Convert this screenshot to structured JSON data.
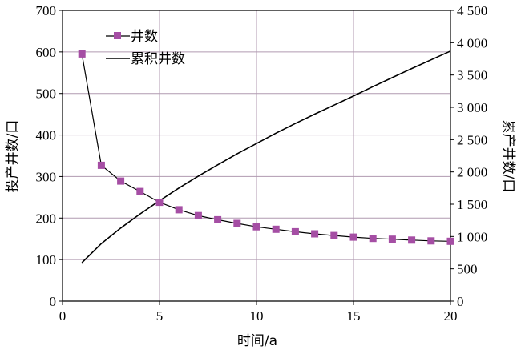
{
  "chart_data": {
    "type": "line",
    "xlabel": "时间/a",
    "ylabel_left": "投产井数/口",
    "ylabel_right": "累产井数/口",
    "xlim": [
      0,
      20
    ],
    "ylim_left": [
      0,
      700
    ],
    "ylim_right": [
      0,
      4500
    ],
    "x_ticks": [
      0,
      5,
      10,
      15,
      20
    ],
    "y_left_ticks": [
      0,
      100,
      200,
      300,
      400,
      500,
      600,
      700
    ],
    "y_right_ticks": [
      0,
      500,
      1000,
      1500,
      2000,
      2500,
      3000,
      3500,
      4000,
      4500
    ],
    "x_tick_labels": [
      "0",
      "5",
      "10",
      "15",
      "20"
    ],
    "y_left_tick_labels": [
      "0",
      "100",
      "200",
      "300",
      "400",
      "500",
      "600",
      "700"
    ],
    "y_right_tick_labels": [
      "0",
      "500",
      "1 000",
      "1 500",
      "2 000",
      "2 500",
      "3 000",
      "3 500",
      "4 000",
      "4 500"
    ],
    "grid": true,
    "legend_position": "top-left",
    "series": [
      {
        "name": "井数",
        "axis": "left",
        "marker": "square",
        "color": "#a54ea4",
        "line_color": "#000000",
        "x": [
          1,
          2,
          3,
          4,
          5,
          6,
          7,
          8,
          9,
          10,
          11,
          12,
          13,
          14,
          15,
          16,
          17,
          18,
          19,
          20
        ],
        "values": [
          595,
          327,
          289,
          264,
          238,
          220,
          206,
          196,
          187,
          179,
          173,
          167,
          162,
          158,
          154,
          151,
          149,
          147,
          145,
          144
        ]
      },
      {
        "name": "累积井数",
        "axis": "right",
        "color": "#000000",
        "x": [
          1,
          2,
          3,
          4,
          5,
          6,
          7,
          8,
          9,
          10,
          11,
          12,
          13,
          14,
          15,
          16,
          17,
          18,
          19,
          20
        ],
        "values": [
          595,
          890,
          1130,
          1350,
          1555,
          1750,
          1935,
          2110,
          2280,
          2440,
          2600,
          2750,
          2895,
          3035,
          3175,
          3320,
          3460,
          3600,
          3735,
          3870
        ]
      }
    ]
  }
}
